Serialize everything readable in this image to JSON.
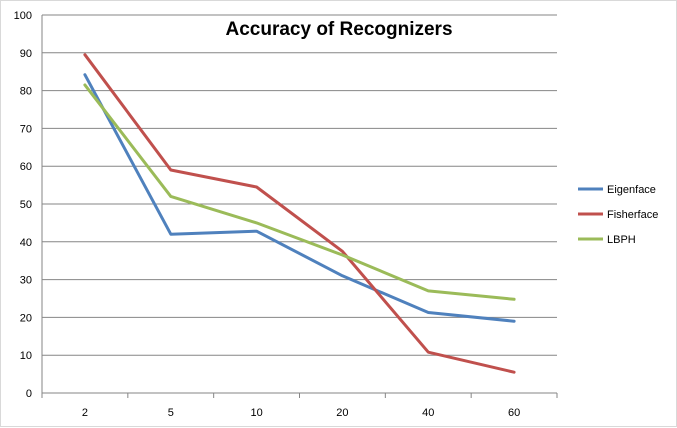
{
  "chart_data": {
    "type": "line",
    "title": "Accuracy of Recognizers",
    "xlabel": "",
    "ylabel": "",
    "categories": [
      "2",
      "5",
      "10",
      "20",
      "40",
      "60"
    ],
    "ylim": [
      0,
      100
    ],
    "yticks": [
      0,
      10,
      20,
      30,
      40,
      50,
      60,
      70,
      80,
      90,
      100
    ],
    "grid": "horizontal",
    "legend_position": "right",
    "series": [
      {
        "name": "Eigenface",
        "color": "#4f81bd",
        "values": [
          84.2,
          42.0,
          42.8,
          31.0,
          21.3,
          19.0
        ]
      },
      {
        "name": "Fisherface",
        "color": "#c0504d",
        "values": [
          89.5,
          59.0,
          54.5,
          37.5,
          10.8,
          5.5
        ]
      },
      {
        "name": "LBPH",
        "color": "#9bbb59",
        "values": [
          81.5,
          52.0,
          45.0,
          36.5,
          27.0,
          24.8
        ]
      }
    ]
  }
}
